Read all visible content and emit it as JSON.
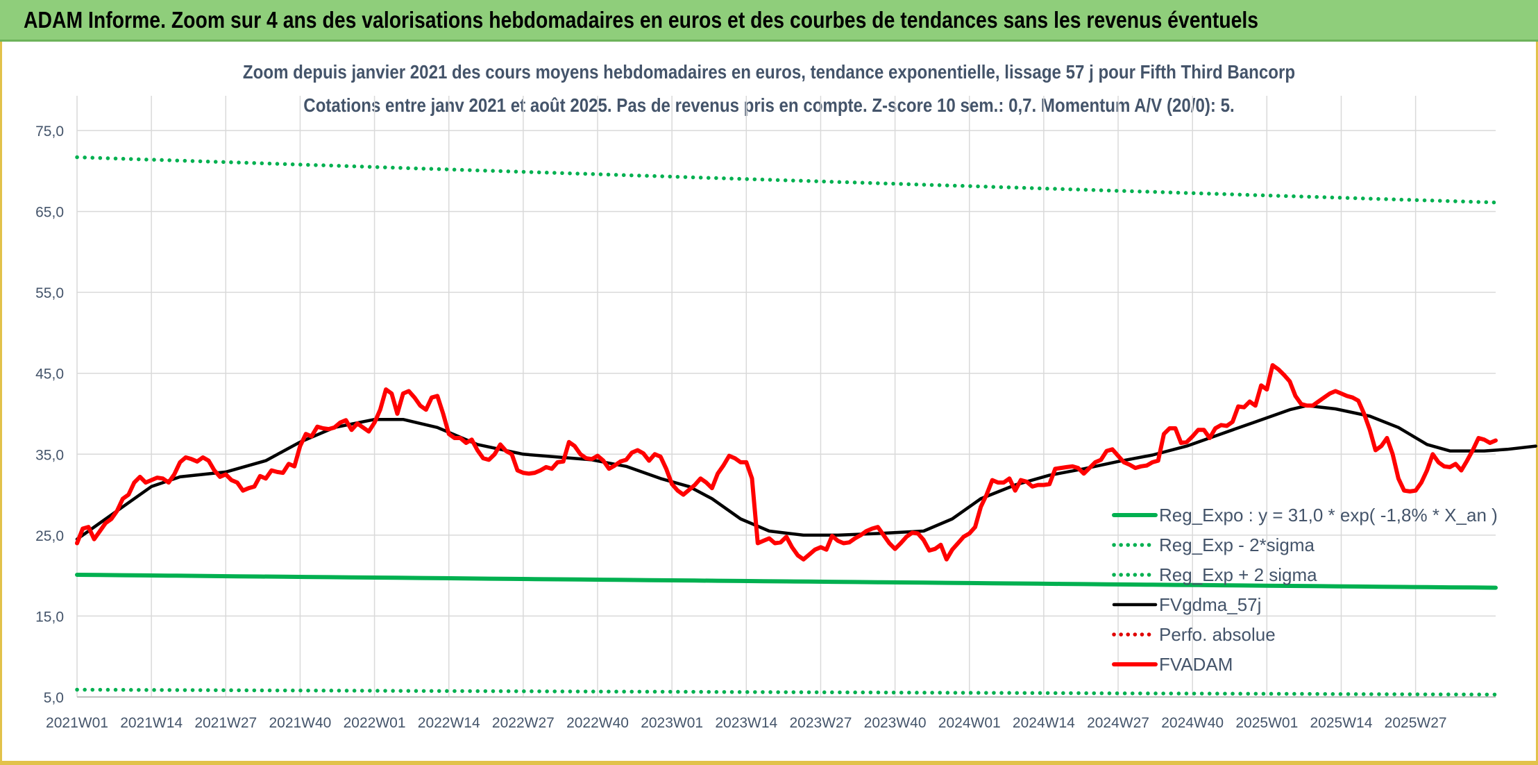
{
  "header": {
    "title": "ADAM Informe. Zoom sur 4 ans des valorisations hebdomadaires en euros et des courbes de tendances sans les revenus éventuels"
  },
  "chart_data": {
    "type": "line",
    "title": "Zoom depuis janvier 2021 des cours moyens hebdomadaires en euros, tendance exponentielle, lissage 57 j pour Fifth Third Bancorp",
    "subtitle": "Cotations entre janv 2021 et août 2025. Pas de revenus pris en compte. Z-score 10 sem.: 0,7. Momentum A/V (20/0): 5.",
    "xlabel": "",
    "ylabel": "",
    "ylim": [
      5,
      75
    ],
    "yticks": [
      "75,0",
      "65,0",
      "55,0",
      "45,0",
      "35,0",
      "25,0",
      "15,0",
      "5,0"
    ],
    "x_tick_labels": [
      "2021W01",
      "2021W14",
      "2021W27",
      "2021W40",
      "2022W01",
      "2022W14",
      "2022W27",
      "2022W40",
      "2023W01",
      "2023W14",
      "2023W27",
      "2023W40",
      "2024W01",
      "2024W14",
      "2024W27",
      "2024W40",
      "2025W01",
      "2025W14",
      "2025W27"
    ],
    "grid": true,
    "legend_position": "bottom-right",
    "series": [
      {
        "name": "Reg_Expo : y = 31,0 * exp( -1,8% *  X_an )",
        "color": "#00b050",
        "style": "solid",
        "start": 20.1,
        "end": 18.5
      },
      {
        "name": "Reg_Exp - 2*sigma",
        "color": "#00b050",
        "style": "dotted",
        "start": 5.9,
        "end": 5.3
      },
      {
        "name": "Reg_Exp + 2 sigma",
        "color": "#00b050",
        "style": "dotted",
        "start": 71.7,
        "end": 66.1
      },
      {
        "name": "FVgdma_57j",
        "color": "#000000",
        "style": "solid",
        "points": [
          [
            0,
            24.5
          ],
          [
            4,
            26.5
          ],
          [
            8,
            28.5
          ],
          [
            13,
            31
          ],
          [
            18,
            32.2
          ],
          [
            26,
            32.8
          ],
          [
            33,
            34.2
          ],
          [
            39,
            36.5
          ],
          [
            45,
            38.3
          ],
          [
            52,
            39.3
          ],
          [
            57,
            39.3
          ],
          [
            63,
            38.3
          ],
          [
            70,
            36.2
          ],
          [
            78,
            35
          ],
          [
            90,
            34.3
          ],
          [
            96,
            33.5
          ],
          [
            102,
            32
          ],
          [
            107,
            31
          ],
          [
            111,
            29.5
          ],
          [
            116,
            27
          ],
          [
            121,
            25.5
          ],
          [
            127,
            25
          ],
          [
            133,
            25
          ],
          [
            140,
            25.2
          ],
          [
            148,
            25.5
          ],
          [
            153,
            27
          ],
          [
            158,
            29.5
          ],
          [
            164,
            31.2
          ],
          [
            170,
            32.4
          ],
          [
            176,
            33.2
          ],
          [
            182,
            34.1
          ],
          [
            188,
            34.9
          ],
          [
            194,
            36
          ],
          [
            200,
            37.5
          ],
          [
            206,
            39
          ],
          [
            212,
            40.5
          ],
          [
            215,
            41
          ],
          [
            220,
            40.6
          ],
          [
            226,
            39.7
          ],
          [
            231,
            38.3
          ],
          [
            236,
            36.2
          ],
          [
            240,
            35.4
          ],
          [
            246,
            35.4
          ],
          [
            250,
            35.6
          ],
          [
            255,
            36
          ]
        ]
      },
      {
        "name": "Perfo. absolue",
        "color": "#e00000",
        "style": "dotted",
        "points": []
      },
      {
        "name": "FVADAM",
        "color": "#ff0000",
        "style": "solid",
        "points": [
          [
            0,
            24
          ],
          [
            1,
            25.8
          ],
          [
            2,
            26
          ],
          [
            3,
            24.5
          ],
          [
            5,
            26.5
          ],
          [
            6,
            27
          ],
          [
            7,
            28
          ],
          [
            8,
            29.5
          ],
          [
            9,
            30
          ],
          [
            10,
            31.5
          ],
          [
            11,
            32.2
          ],
          [
            12,
            31.5
          ],
          [
            13,
            31.8
          ],
          [
            14,
            32.1
          ],
          [
            15,
            32
          ],
          [
            16,
            31.5
          ],
          [
            17,
            32.5
          ],
          [
            18,
            34
          ],
          [
            19,
            34.6
          ],
          [
            20,
            34.4
          ],
          [
            21,
            34.1
          ],
          [
            22,
            34.6
          ],
          [
            23,
            34.2
          ],
          [
            24,
            33
          ],
          [
            25,
            32.2
          ],
          [
            26,
            32.5
          ],
          [
            27,
            31.8
          ],
          [
            28,
            31.5
          ],
          [
            29,
            30.5
          ],
          [
            30,
            30.8
          ],
          [
            31,
            31
          ],
          [
            32,
            32.3
          ],
          [
            33,
            32
          ],
          [
            34,
            33
          ],
          [
            35,
            32.8
          ],
          [
            36,
            32.7
          ],
          [
            37,
            33.8
          ],
          [
            38,
            33.5
          ],
          [
            39,
            36
          ],
          [
            40,
            37.5
          ],
          [
            41,
            37.2
          ],
          [
            42,
            38.4
          ],
          [
            43,
            38.2
          ],
          [
            44,
            38.1
          ],
          [
            45,
            38.3
          ],
          [
            46,
            38.9
          ],
          [
            47,
            39.2
          ],
          [
            48,
            38
          ],
          [
            49,
            38.8
          ],
          [
            50,
            38.3
          ],
          [
            51,
            37.8
          ],
          [
            52,
            38.9
          ],
          [
            53,
            40.5
          ],
          [
            54,
            43
          ],
          [
            55,
            42.5
          ],
          [
            56,
            40
          ],
          [
            57,
            42.5
          ],
          [
            58,
            42.8
          ],
          [
            59,
            42
          ],
          [
            60,
            41
          ],
          [
            61,
            40.5
          ],
          [
            62,
            42
          ],
          [
            63,
            42.2
          ],
          [
            64,
            40
          ],
          [
            65,
            37.5
          ],
          [
            66,
            37
          ],
          [
            67,
            37
          ],
          [
            68,
            36.4
          ],
          [
            69,
            36.8
          ],
          [
            70,
            35.5
          ],
          [
            71,
            34.5
          ],
          [
            72,
            34.3
          ],
          [
            73,
            35
          ],
          [
            74,
            36.2
          ],
          [
            75,
            35.4
          ],
          [
            76,
            35
          ],
          [
            77,
            33
          ],
          [
            78,
            32.7
          ],
          [
            79,
            32.6
          ],
          [
            80,
            32.7
          ],
          [
            81,
            33
          ],
          [
            82,
            33.4
          ],
          [
            83,
            33.2
          ],
          [
            84,
            34
          ],
          [
            85,
            34.1
          ],
          [
            86,
            36.5
          ],
          [
            87,
            36
          ],
          [
            88,
            35
          ],
          [
            89,
            34.5
          ],
          [
            90,
            34.4
          ],
          [
            91,
            34.8
          ],
          [
            92,
            34.2
          ],
          [
            93,
            33.2
          ],
          [
            94,
            33.6
          ],
          [
            95,
            34.1
          ],
          [
            96,
            34.3
          ],
          [
            97,
            35.2
          ],
          [
            98,
            35.5
          ],
          [
            99,
            35.1
          ],
          [
            100,
            34.2
          ],
          [
            101,
            35
          ],
          [
            102,
            34.7
          ],
          [
            103,
            33.2
          ],
          [
            104,
            31.3
          ],
          [
            105,
            30.5
          ],
          [
            106,
            30
          ],
          [
            107,
            30.6
          ],
          [
            108,
            31.2
          ],
          [
            109,
            32
          ],
          [
            110,
            31.5
          ],
          [
            111,
            30.8
          ],
          [
            112,
            32.6
          ],
          [
            113,
            33.6
          ],
          [
            114,
            34.8
          ],
          [
            115,
            34.5
          ],
          [
            116,
            34
          ],
          [
            117,
            34
          ],
          [
            118,
            32
          ],
          [
            119,
            24
          ],
          [
            120,
            24.3
          ],
          [
            121,
            24.6
          ],
          [
            122,
            24
          ],
          [
            123,
            24.1
          ],
          [
            124,
            24.8
          ],
          [
            125,
            23.5
          ],
          [
            126,
            22.5
          ],
          [
            127,
            22
          ],
          [
            128,
            22.6
          ],
          [
            129,
            23.2
          ],
          [
            130,
            23.5
          ],
          [
            131,
            23.2
          ],
          [
            132,
            24.9
          ],
          [
            133,
            24.3
          ],
          [
            134,
            24
          ],
          [
            135,
            24.1
          ],
          [
            136,
            24.6
          ],
          [
            137,
            25
          ],
          [
            138,
            25.5
          ],
          [
            139,
            25.8
          ],
          [
            140,
            26
          ],
          [
            141,
            25
          ],
          [
            142,
            24
          ],
          [
            143,
            23.3
          ],
          [
            144,
            24
          ],
          [
            145,
            24.8
          ],
          [
            146,
            25.3
          ],
          [
            147,
            25.2
          ],
          [
            148,
            24.4
          ],
          [
            149,
            23.1
          ],
          [
            150,
            23.3
          ],
          [
            151,
            23.8
          ],
          [
            152,
            22
          ],
          [
            153,
            23.2
          ],
          [
            154,
            24
          ],
          [
            155,
            24.8
          ],
          [
            156,
            25.2
          ],
          [
            157,
            26
          ],
          [
            158,
            28.5
          ],
          [
            159,
            30
          ],
          [
            160,
            31.8
          ],
          [
            161,
            31.5
          ],
          [
            162,
            31.5
          ],
          [
            163,
            32
          ],
          [
            164,
            30.5
          ],
          [
            165,
            31.8
          ],
          [
            166,
            31.6
          ],
          [
            167,
            31
          ],
          [
            168,
            31.2
          ],
          [
            169,
            31.2
          ],
          [
            170,
            31.3
          ],
          [
            171,
            33.2
          ],
          [
            172,
            33.3
          ],
          [
            173,
            33.4
          ],
          [
            174,
            33.5
          ],
          [
            175,
            33.3
          ],
          [
            176,
            32.6
          ],
          [
            177,
            33.3
          ],
          [
            178,
            34
          ],
          [
            179,
            34.3
          ],
          [
            180,
            35.4
          ],
          [
            181,
            35.6
          ],
          [
            182,
            34.8
          ],
          [
            183,
            34
          ],
          [
            184,
            33.7
          ],
          [
            185,
            33.3
          ],
          [
            186,
            33.5
          ],
          [
            187,
            33.6
          ],
          [
            188,
            34
          ],
          [
            189,
            34.2
          ],
          [
            190,
            37.5
          ],
          [
            191,
            38.2
          ],
          [
            192,
            38.2
          ],
          [
            193,
            36.4
          ],
          [
            194,
            36.5
          ],
          [
            195,
            37.2
          ],
          [
            196,
            38
          ],
          [
            197,
            38
          ],
          [
            198,
            37
          ],
          [
            199,
            38.2
          ],
          [
            200,
            38.6
          ],
          [
            201,
            38.5
          ],
          [
            202,
            39
          ],
          [
            203,
            40.9
          ],
          [
            204,
            40.8
          ],
          [
            205,
            41.5
          ],
          [
            206,
            41
          ],
          [
            207,
            43.5
          ],
          [
            208,
            43
          ],
          [
            209,
            46
          ],
          [
            210,
            45.5
          ],
          [
            211,
            44.8
          ],
          [
            212,
            44
          ],
          [
            213,
            42.2
          ],
          [
            214,
            41.2
          ],
          [
            215,
            41
          ],
          [
            216,
            41
          ],
          [
            217,
            41.5
          ],
          [
            218,
            42
          ],
          [
            219,
            42.5
          ],
          [
            220,
            42.8
          ],
          [
            221,
            42.5
          ],
          [
            222,
            42.2
          ],
          [
            223,
            42
          ],
          [
            224,
            41.6
          ],
          [
            225,
            40
          ],
          [
            226,
            38
          ],
          [
            227,
            35.5
          ],
          [
            228,
            36
          ],
          [
            229,
            37
          ],
          [
            230,
            35
          ],
          [
            231,
            32
          ],
          [
            232,
            30.5
          ],
          [
            233,
            30.4
          ],
          [
            234,
            30.5
          ],
          [
            235,
            31.5
          ],
          [
            236,
            33
          ],
          [
            237,
            35
          ],
          [
            238,
            34
          ],
          [
            239,
            33.5
          ],
          [
            240,
            33.4
          ],
          [
            241,
            33.8
          ],
          [
            242,
            33
          ],
          [
            243,
            34.2
          ],
          [
            244,
            35.5
          ],
          [
            245,
            37
          ],
          [
            246,
            36.8
          ],
          [
            247,
            36.4
          ],
          [
            248,
            36.7
          ]
        ]
      }
    ]
  }
}
